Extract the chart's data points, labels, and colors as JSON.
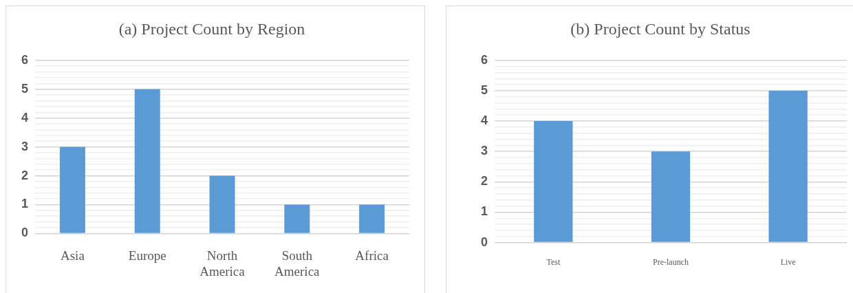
{
  "chart_data": [
    {
      "type": "bar",
      "title": "(a) Project Count by Region",
      "categories": [
        "Asia",
        "Europe",
        "North America",
        "South America",
        "Africa"
      ],
      "values": [
        3,
        5,
        2,
        1,
        1
      ],
      "color": "#5b9bd5",
      "ylim": [
        0,
        6
      ],
      "yticks": [
        0,
        {
          "value": 0.2,
          "label": null
        },
        {
          "value": 0.4,
          "label": null
        },
        {
          "value": 0.6,
          "label": null
        },
        {
          "value": 0.8,
          "label": null
        },
        1,
        {
          "value": 1.2,
          "label": null
        },
        {
          "value": 1.4,
          "label": null
        },
        {
          "value": 1.6,
          "label": null
        },
        {
          "value": 1.8,
          "label": null
        },
        2,
        {
          "value": 2.2,
          "label": null
        },
        {
          "value": 2.4,
          "label": null
        },
        {
          "value": 2.6,
          "label": null
        },
        {
          "value": 2.8,
          "label": null
        },
        3,
        {
          "value": 3.2,
          "label": null
        },
        {
          "value": 3.4,
          "label": null
        },
        {
          "value": 3.6,
          "label": null
        },
        {
          "value": 3.8,
          "label": null
        },
        4,
        {
          "value": 4.2,
          "label": null
        },
        {
          "value": 4.4,
          "label": null
        },
        {
          "value": 4.6,
          "label": null
        },
        {
          "value": 4.8,
          "label": null
        },
        5,
        {
          "value": 5.2,
          "label": null
        },
        {
          "value": 5.4,
          "label": null
        },
        {
          "value": 5.6,
          "label": null
        },
        {
          "value": 5.8,
          "label": null
        },
        6
      ],
      "grid": "y",
      "legend": false
    },
    {
      "type": "bar",
      "title": "(b) Project Count by Status",
      "categories": [
        "Test",
        "Pre-launch",
        "Live"
      ],
      "values": [
        4,
        3,
        5
      ],
      "color": "#5b9bd5",
      "ylim": [
        0,
        6
      ],
      "yticks": [
        0,
        {
          "value": 0.2,
          "label": null
        },
        {
          "value": 0.4,
          "label": null
        },
        {
          "value": 0.6,
          "label": null
        },
        {
          "value": 0.8,
          "label": null
        },
        1,
        {
          "value": 1.2,
          "label": null
        },
        {
          "value": 1.4,
          "label": null
        },
        {
          "value": 1.6,
          "label": null
        },
        {
          "value": 1.8,
          "label": null
        },
        2,
        {
          "value": 2.2,
          "label": null
        },
        {
          "value": 2.4,
          "label": null
        },
        {
          "value": 2.6,
          "label": null
        },
        {
          "value": 2.8,
          "label": null
        },
        3,
        {
          "value": 3.2,
          "label": null
        },
        {
          "value": 3.4,
          "label": null
        },
        {
          "value": 3.6,
          "label": null
        },
        {
          "value": 3.8,
          "label": null
        },
        4,
        {
          "value": 4.2,
          "label": null
        },
        {
          "value": 4.4,
          "label": null
        },
        {
          "value": 4.6,
          "label": null
        },
        {
          "value": 4.8,
          "label": null
        },
        5,
        {
          "value": 5.2,
          "label": null
        },
        {
          "value": 5.4,
          "label": null
        },
        {
          "value": 5.6,
          "label": null
        },
        {
          "value": 5.8,
          "label": null
        },
        6
      ],
      "grid": "y",
      "legend": false
    }
  ]
}
